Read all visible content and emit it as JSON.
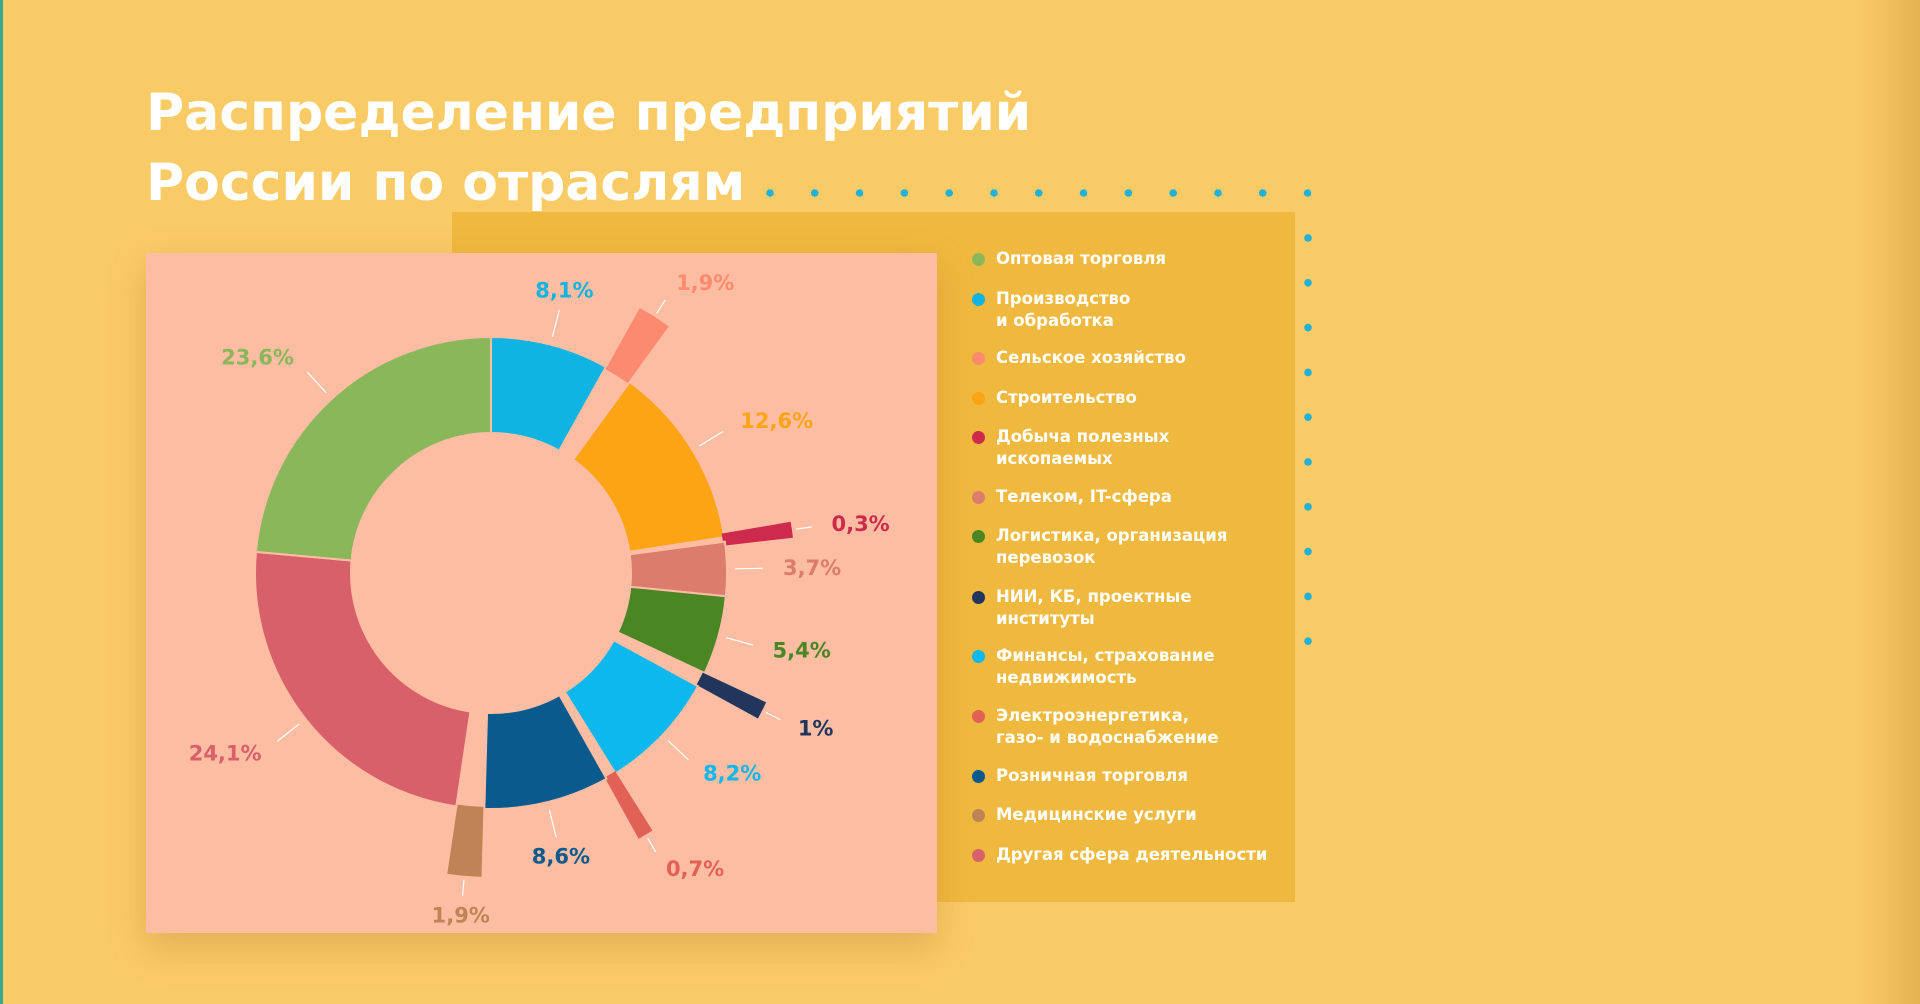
{
  "title": {
    "line1": "Распределение предприятий",
    "line2": "России по отраслям"
  },
  "chart_data": {
    "type": "donut",
    "title": "Распределение предприятий России по отраслям",
    "unit": "%",
    "slices": [
      {
        "name": "Производство\nи обработка",
        "value": 8.1,
        "label": "8,1%",
        "color": "#10b4e2",
        "exploded": false
      },
      {
        "name": "Сельское хозяйство",
        "value": 1.9,
        "label": "1,9%",
        "color": "#fb8a6e",
        "exploded": true
      },
      {
        "name": "Строительство",
        "value": 12.6,
        "label": "12,6%",
        "color": "#fca413",
        "exploded": false
      },
      {
        "name": "Добыча полезных\nископаемых",
        "value": 0.3,
        "label": "0,3%",
        "color": "#cd2a4e",
        "exploded": true
      },
      {
        "name": "Телеком, IT-сфера",
        "value": 3.7,
        "label": "3,7%",
        "color": "#db7c6c",
        "exploded": false
      },
      {
        "name": "Логистика, организация\nперевозок",
        "value": 5.4,
        "label": "5,4%",
        "color": "#4b8624",
        "exploded": false
      },
      {
        "name": "НИИ, КБ, проектные\nинституты",
        "value": 1.0,
        "label": "1%",
        "color": "#22365d",
        "exploded": true
      },
      {
        "name": "Финансы, страхование\nнедвижимость",
        "value": 8.2,
        "label": "8,2%",
        "color": "#0cb8ee",
        "exploded": false
      },
      {
        "name": "Электроэнергетика,\nгазо- и водоснабжение",
        "value": 0.7,
        "label": "0,7%",
        "color": "#e26157",
        "exploded": true
      },
      {
        "name": "Розничная торговля",
        "value": 8.6,
        "label": "8,6%",
        "color": "#0a5a8e",
        "exploded": false
      },
      {
        "name": "Медицинские услуги",
        "value": 1.9,
        "label": "1,9%",
        "color": "#c08355",
        "exploded": true
      },
      {
        "name": "Другая сфера деятельности",
        "value": 24.1,
        "label": "24,1%",
        "color": "#d8606a",
        "exploded": false
      },
      {
        "name": "Оптовая торговля",
        "value": 23.6,
        "label": "23,6%",
        "color": "#8ab75a",
        "exploded": false
      }
    ],
    "legend": {
      "placement": "right",
      "items": [
        {
          "label": "Оптовая торговля",
          "color": "#8ab75a"
        },
        {
          "label": "Производство\nи обработка",
          "color": "#10b4e2"
        },
        {
          "label": "Сельское хозяйство",
          "color": "#fb8a6e"
        },
        {
          "label": "Строительство",
          "color": "#fca413"
        },
        {
          "label": "Добыча полезных\nископаемых",
          "color": "#cd2a4e"
        },
        {
          "label": "Телеком, IT-сфера",
          "color": "#db7c6c"
        },
        {
          "label": "Логистика, организация\nперевозок",
          "color": "#4b8624"
        },
        {
          "label": "НИИ, КБ, проектные\nинституты",
          "color": "#22365d"
        },
        {
          "label": "Финансы, страхование\nнедвижимость",
          "color": "#0cb8ee"
        },
        {
          "label": "Электроэнергетика,\nгазо- и водоснабжение",
          "color": "#e26157"
        },
        {
          "label": "Розничная торговля",
          "color": "#0a5a8e"
        },
        {
          "label": "Медицинские услуги",
          "color": "#c08355"
        },
        {
          "label": "Другая сфера деятельности",
          "color": "#d8606a"
        }
      ]
    }
  },
  "colors": {
    "background": "#f9cb66",
    "legend_panel": "#efb93f",
    "chart_panel": "#fdbda3",
    "dots": "#20b1d9",
    "title_text": "#ffffff"
  }
}
